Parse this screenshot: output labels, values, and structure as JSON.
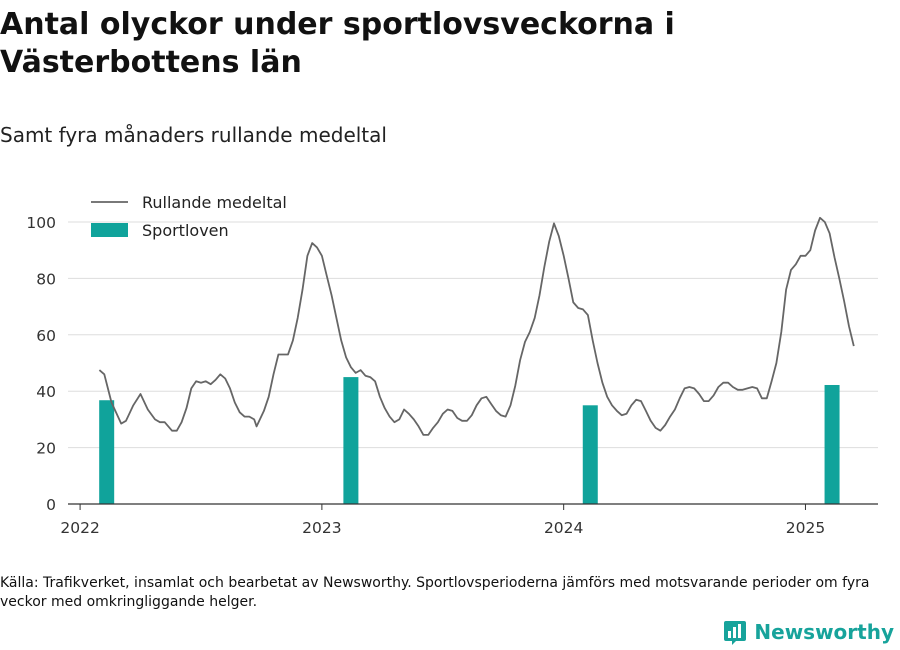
{
  "title": "Antal olyckor under sportlovsveckorna i Västerbottens län",
  "subtitle": "Samt fyra månaders rullande medeltal",
  "source": "Källa: Trafikverket, insamlat och bearbetat av Newsworthy. Sportlovsperioderna jämförs med motsvarande perioder om fyra veckor med omkringliggande helger.",
  "logo_text": "Newsworthy",
  "colors": {
    "line": "#666666",
    "bar": "#10a39b",
    "grid": "#dddddd",
    "axis": "#333333"
  },
  "chart_data": {
    "type": "bar+line",
    "ylim": [
      0,
      100
    ],
    "yticks": [
      0,
      20,
      40,
      60,
      80,
      100
    ],
    "xlim": [
      2021.95,
      2025.3
    ],
    "xticks": [
      "2022",
      "2023",
      "2024",
      "2025"
    ],
    "grid": true,
    "legend_position": "top-left",
    "series": [
      {
        "name": "Rullande medeltal",
        "type": "line",
        "points": [
          [
            2022.08,
            47.5
          ],
          [
            2022.1,
            46
          ],
          [
            2022.13,
            36
          ],
          [
            2022.17,
            28.5
          ],
          [
            2022.19,
            29.5
          ],
          [
            2022.22,
            35
          ],
          [
            2022.25,
            39
          ],
          [
            2022.28,
            33.5
          ],
          [
            2022.31,
            30
          ],
          [
            2022.33,
            29
          ],
          [
            2022.35,
            29
          ],
          [
            2022.38,
            26
          ],
          [
            2022.4,
            26
          ],
          [
            2022.42,
            29
          ],
          [
            2022.44,
            34
          ],
          [
            2022.46,
            41
          ],
          [
            2022.48,
            43.5
          ],
          [
            2022.5,
            43
          ],
          [
            2022.52,
            43.5
          ],
          [
            2022.54,
            42.5
          ],
          [
            2022.56,
            44
          ],
          [
            2022.58,
            46
          ],
          [
            2022.6,
            44.5
          ],
          [
            2022.62,
            41
          ],
          [
            2022.64,
            36
          ],
          [
            2022.66,
            32.5
          ],
          [
            2022.68,
            31
          ],
          [
            2022.7,
            31
          ],
          [
            2022.72,
            30
          ],
          [
            2022.73,
            27.5
          ],
          [
            2022.76,
            33
          ],
          [
            2022.78,
            38
          ],
          [
            2022.8,
            46
          ],
          [
            2022.82,
            53
          ],
          [
            2022.84,
            53
          ],
          [
            2022.86,
            53
          ],
          [
            2022.88,
            58
          ],
          [
            2022.9,
            66
          ],
          [
            2022.92,
            76
          ],
          [
            2022.94,
            88
          ],
          [
            2022.96,
            92.5
          ],
          [
            2022.98,
            91
          ],
          [
            2023.0,
            88
          ],
          [
            2023.02,
            81
          ],
          [
            2023.04,
            74
          ],
          [
            2023.06,
            66
          ],
          [
            2023.08,
            58
          ],
          [
            2023.1,
            52
          ],
          [
            2023.12,
            48.5
          ],
          [
            2023.14,
            46.5
          ],
          [
            2023.16,
            47.5
          ],
          [
            2023.18,
            45.5
          ],
          [
            2023.2,
            45
          ],
          [
            2023.22,
            43.5
          ],
          [
            2023.24,
            38
          ],
          [
            2023.26,
            34
          ],
          [
            2023.28,
            31
          ],
          [
            2023.3,
            29
          ],
          [
            2023.32,
            30
          ],
          [
            2023.34,
            33.5
          ],
          [
            2023.36,
            32
          ],
          [
            2023.38,
            30
          ],
          [
            2023.4,
            27.5
          ],
          [
            2023.42,
            24.5
          ],
          [
            2023.44,
            24.5
          ],
          [
            2023.46,
            27
          ],
          [
            2023.48,
            29
          ],
          [
            2023.5,
            32
          ],
          [
            2023.52,
            33.5
          ],
          [
            2023.54,
            33
          ],
          [
            2023.56,
            30.5
          ],
          [
            2023.58,
            29.5
          ],
          [
            2023.6,
            29.5
          ],
          [
            2023.62,
            31.5
          ],
          [
            2023.64,
            35
          ],
          [
            2023.66,
            37.5
          ],
          [
            2023.68,
            38
          ],
          [
            2023.7,
            35.5
          ],
          [
            2023.72,
            33
          ],
          [
            2023.74,
            31.5
          ],
          [
            2023.76,
            31
          ],
          [
            2023.78,
            35
          ],
          [
            2023.8,
            42
          ],
          [
            2023.82,
            51
          ],
          [
            2023.84,
            57.5
          ],
          [
            2023.86,
            61
          ],
          [
            2023.88,
            66
          ],
          [
            2023.9,
            74
          ],
          [
            2023.92,
            84
          ],
          [
            2023.94,
            93
          ],
          [
            2023.96,
            99.5
          ],
          [
            2023.98,
            95
          ],
          [
            2024.0,
            88
          ],
          [
            2024.02,
            80
          ],
          [
            2024.04,
            71.5
          ],
          [
            2024.06,
            69.5
          ],
          [
            2024.08,
            69
          ],
          [
            2024.1,
            67
          ],
          [
            2024.12,
            58
          ],
          [
            2024.14,
            50
          ],
          [
            2024.16,
            43
          ],
          [
            2024.18,
            38
          ],
          [
            2024.2,
            35
          ],
          [
            2024.22,
            33
          ],
          [
            2024.24,
            31.5
          ],
          [
            2024.26,
            32
          ],
          [
            2024.28,
            35
          ],
          [
            2024.3,
            37
          ],
          [
            2024.32,
            36.5
          ],
          [
            2024.34,
            33
          ],
          [
            2024.36,
            29.5
          ],
          [
            2024.38,
            27
          ],
          [
            2024.4,
            26
          ],
          [
            2024.42,
            28
          ],
          [
            2024.44,
            31
          ],
          [
            2024.46,
            33.5
          ],
          [
            2024.48,
            37.5
          ],
          [
            2024.5,
            41
          ],
          [
            2024.52,
            41.5
          ],
          [
            2024.54,
            41
          ],
          [
            2024.56,
            39
          ],
          [
            2024.58,
            36.5
          ],
          [
            2024.6,
            36.5
          ],
          [
            2024.62,
            38.5
          ],
          [
            2024.64,
            41.5
          ],
          [
            2024.66,
            43
          ],
          [
            2024.68,
            43
          ],
          [
            2024.7,
            41.5
          ],
          [
            2024.72,
            40.5
          ],
          [
            2024.74,
            40.5
          ],
          [
            2024.76,
            41
          ],
          [
            2024.78,
            41.5
          ],
          [
            2024.8,
            41
          ],
          [
            2024.82,
            37.5
          ],
          [
            2024.84,
            37.5
          ],
          [
            2024.86,
            43.5
          ],
          [
            2024.88,
            50
          ],
          [
            2024.9,
            61
          ],
          [
            2024.92,
            76
          ],
          [
            2024.94,
            83
          ],
          [
            2024.96,
            85
          ],
          [
            2024.98,
            88
          ],
          [
            2025.0,
            88
          ],
          [
            2025.02,
            90
          ],
          [
            2025.04,
            97
          ],
          [
            2025.06,
            101.5
          ],
          [
            2025.08,
            100
          ],
          [
            2025.1,
            96
          ],
          [
            2025.12,
            87.5
          ],
          [
            2025.14,
            80
          ],
          [
            2025.16,
            72
          ],
          [
            2025.18,
            63
          ],
          [
            2025.2,
            56
          ]
        ]
      },
      {
        "name": "Sportloven",
        "type": "bar",
        "points": [
          [
            2022.11,
            36.8
          ],
          [
            2023.12,
            45
          ],
          [
            2024.11,
            35
          ],
          [
            2025.11,
            42.2
          ]
        ]
      }
    ]
  }
}
